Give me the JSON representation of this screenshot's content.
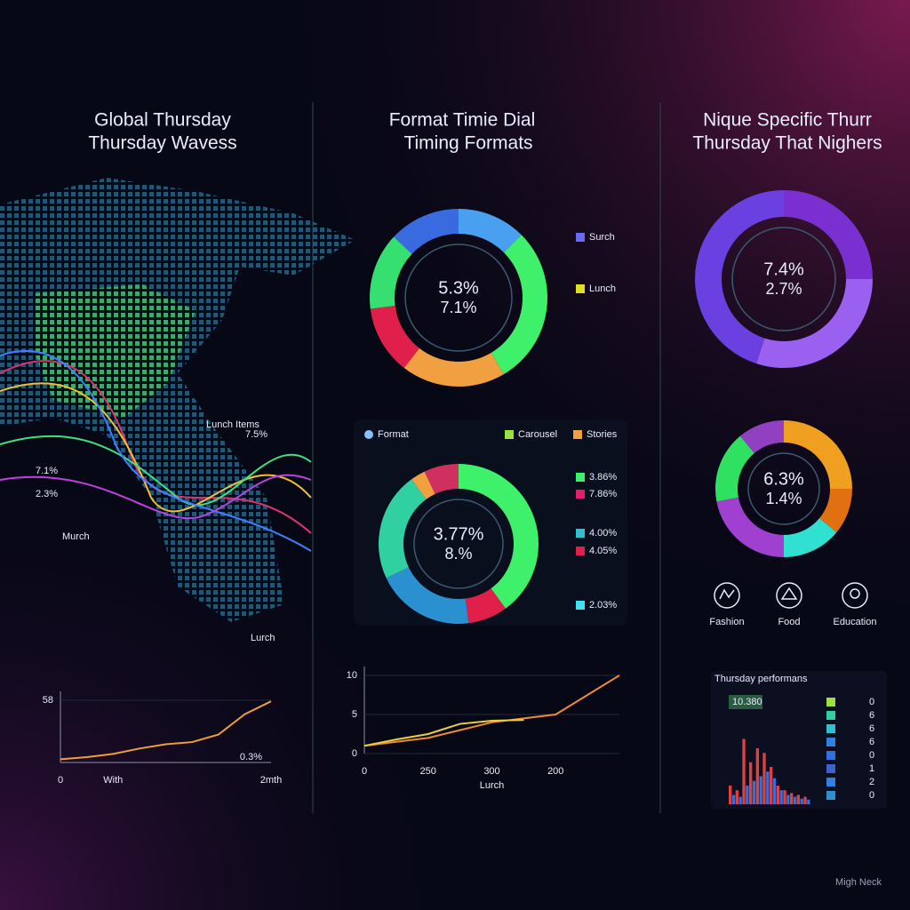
{
  "panels": [
    {
      "title": [
        "Global Thursday",
        "Thursday Wavess"
      ],
      "map_labels": [
        "Lunch Items",
        "7.5%",
        "7.1%",
        "2.3%",
        "Murch",
        "Lurch"
      ]
    },
    {
      "title": [
        "Format Timie Dial",
        "Timing Formats"
      ]
    },
    {
      "title": [
        "Nique Specific Thurr",
        "Thursday That Nighers"
      ],
      "icons": [
        "Fashion",
        "Food",
        "Education"
      ],
      "side_list": [
        0,
        6,
        6,
        6,
        0,
        1,
        2,
        0
      ]
    }
  ],
  "chart_data": [
    {
      "type": "line",
      "categories": [
        "0",
        null,
        "With",
        null,
        null,
        null,
        null,
        null,
        "2mth"
      ],
      "series": [
        {
          "color": "#f0a030",
          "values": [
            3,
            5,
            8,
            13,
            17,
            19,
            26,
            45,
            57
          ]
        }
      ],
      "ylim": [
        0,
        58
      ],
      "yticks": [
        58
      ],
      "annotation": "0.3%"
    },
    {
      "type": "donut",
      "values": [
        12.5,
        29,
        19,
        12.5,
        14,
        13
      ],
      "colors": [
        "#4aa0f0",
        "#3ef06a",
        "#f0a040",
        "#e0204a",
        "#36e070",
        "#3a6ae0"
      ],
      "center_labels": [
        "5.3%",
        "7.1%"
      ],
      "legend": [
        {
          "label": "Surch",
          "color": "#6a6af0"
        },
        {
          "label": "Lunch",
          "color": "#e0e020"
        }
      ]
    },
    {
      "type": "donut",
      "values": [
        40,
        8,
        20,
        22,
        3,
        7
      ],
      "colors": [
        "#3ef06a",
        "#e0204a",
        "#2a90d0",
        "#30d0a0",
        "#f0a040",
        "#d03060"
      ],
      "center_labels": [
        "3.77%",
        "8.%"
      ],
      "legend": [
        {
          "label": "Format",
          "color": "#8ac0ff"
        },
        {
          "label": "Carousel",
          "color": "#9ae040"
        },
        {
          "label": "Stories",
          "color": "#f0a040"
        }
      ],
      "value_legend": [
        {
          "label": "3.86%",
          "color": "#3ef06a"
        },
        {
          "label": "7.86%",
          "color": "#e0206a"
        },
        {
          "label": "4.00%",
          "color": "#30c0d0"
        },
        {
          "label": "4.05%",
          "color": "#e0204a"
        },
        {
          "label": "2.03%",
          "color": "#40e0f0"
        }
      ]
    },
    {
      "type": "line",
      "categories": [
        "0",
        null,
        "250",
        null,
        "300",
        null,
        "200",
        null,
        null
      ],
      "series": [
        {
          "color": "#f08a30",
          "values": [
            1,
            1.5,
            2,
            3,
            4,
            4.5,
            5,
            7.5,
            10
          ]
        },
        {
          "color": "#e8d040",
          "values": [
            1,
            1.8,
            2.5,
            3.8,
            4.2,
            4.3,
            null,
            null,
            null
          ]
        }
      ],
      "ylim": [
        0,
        10
      ],
      "yticks": [
        0,
        5,
        10
      ],
      "x_label": "Lurch"
    },
    {
      "type": "donut",
      "values": [
        25,
        30,
        45
      ],
      "colors": [
        "#7a30d0",
        "#9a60f0",
        "#6a40e0"
      ],
      "center_labels": [
        "7.4%",
        "2.7%"
      ]
    },
    {
      "type": "donut",
      "values": [
        25,
        11,
        14,
        22,
        17,
        11
      ],
      "colors": [
        "#f0a020",
        "#e07010",
        "#30e0d0",
        "#a040d0",
        "#30e060",
        "#9040c0"
      ],
      "center_labels": [
        "6.3%",
        "1.4%"
      ]
    },
    {
      "type": "bar",
      "title": "Thursday performans",
      "annotation": "10.380",
      "series": [
        {
          "color": "#e04040",
          "values": [
            20,
            15,
            70,
            45,
            60,
            55,
            40,
            20,
            15,
            12,
            10,
            8
          ]
        },
        {
          "color": "#3070e0",
          "values": [
            10,
            8,
            20,
            25,
            30,
            35,
            28,
            15,
            10,
            8,
            6,
            5
          ]
        }
      ],
      "ylim": [
        0,
        100
      ]
    }
  ],
  "footer": "Migh Neck"
}
